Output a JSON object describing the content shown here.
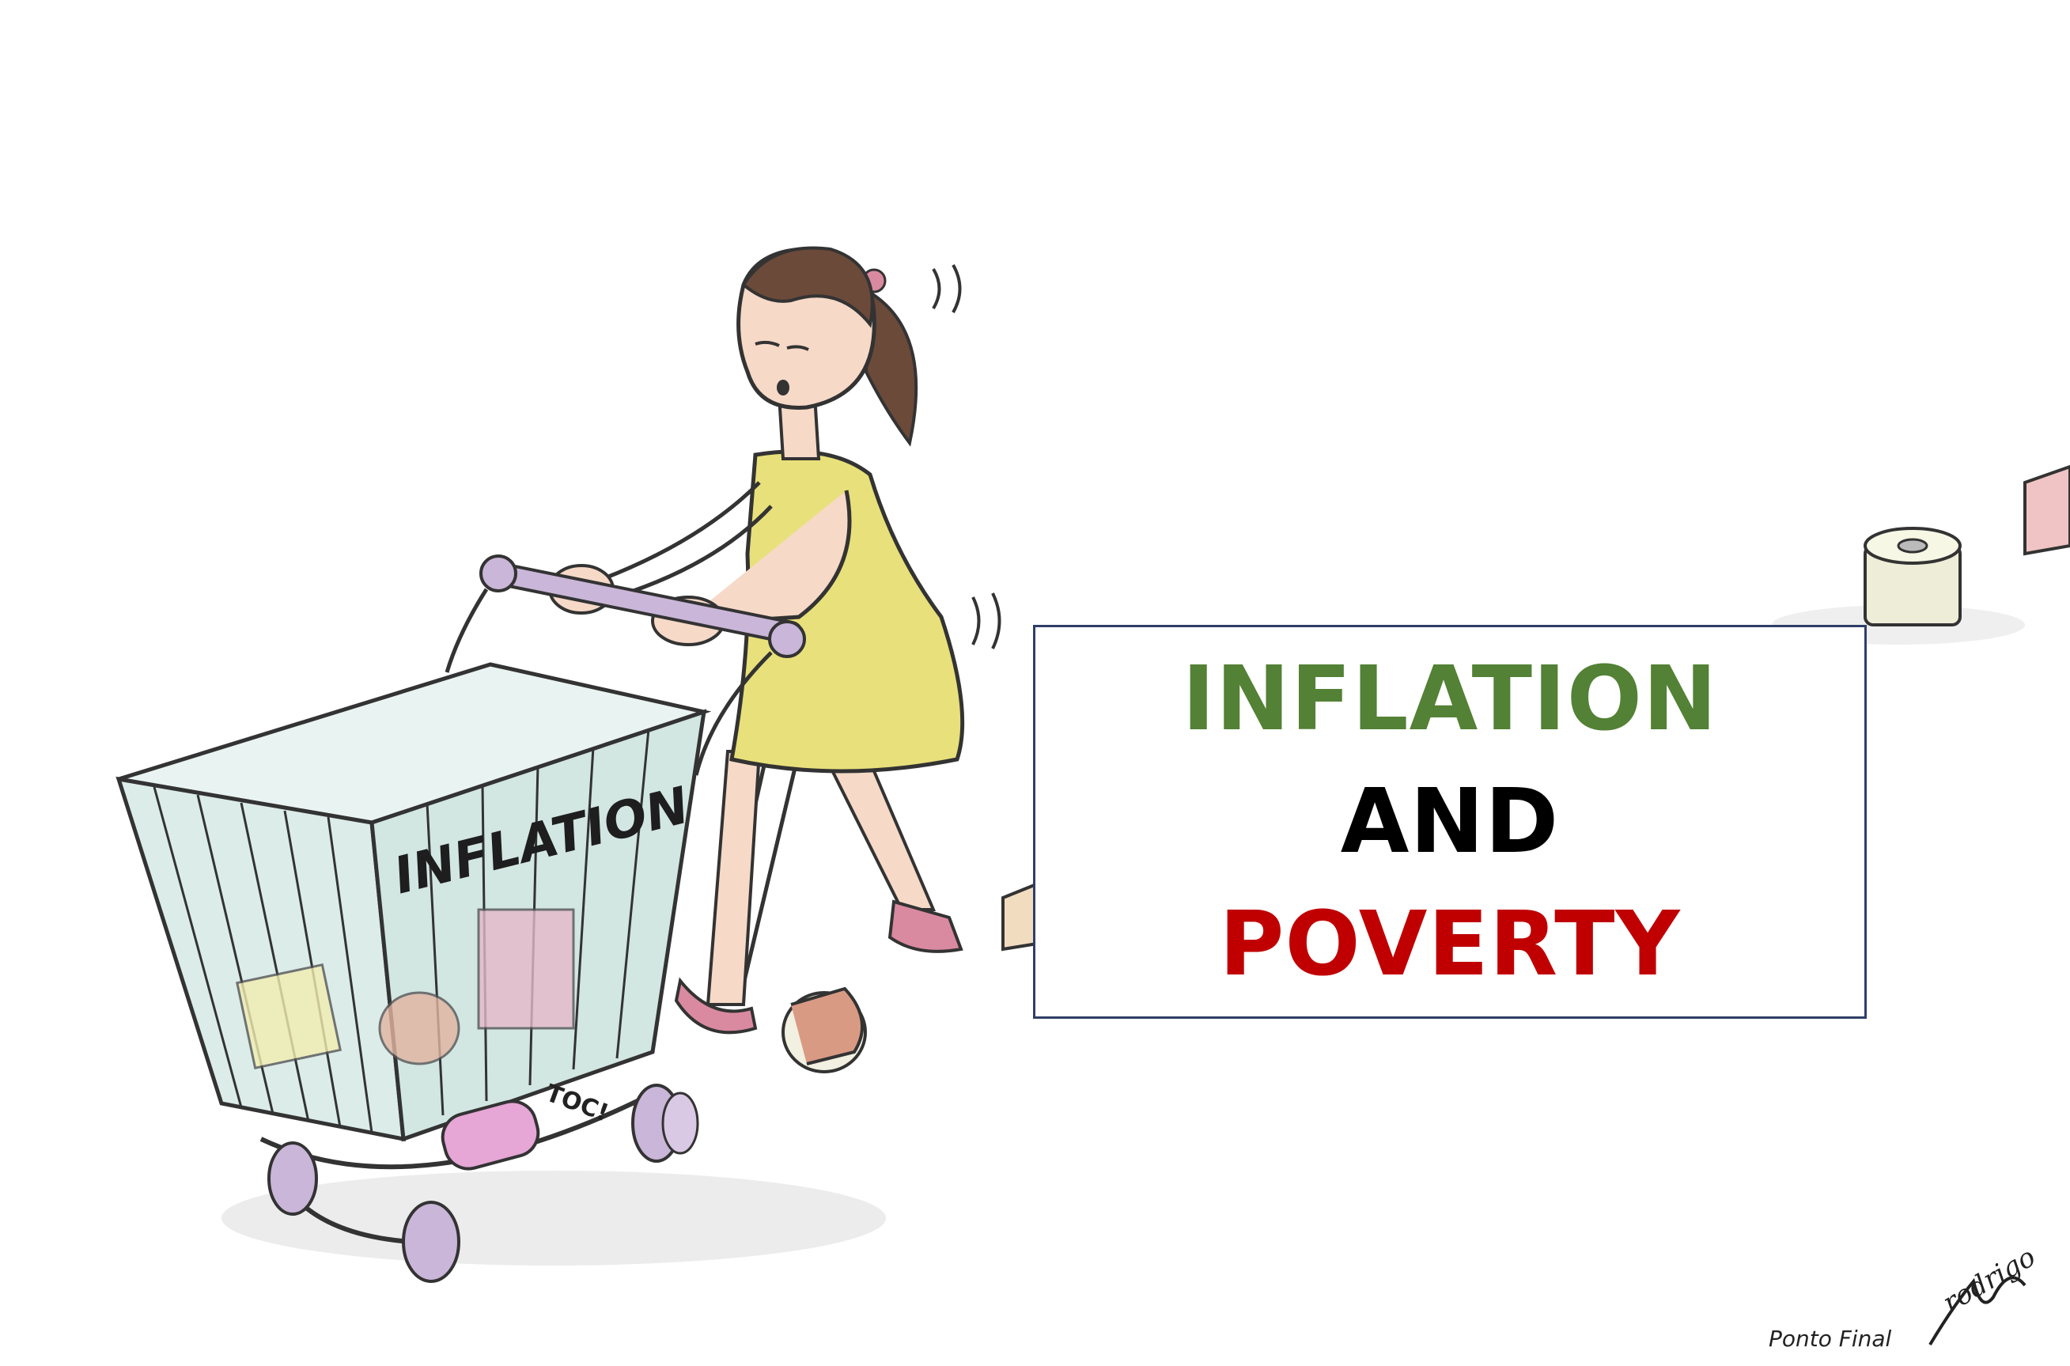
{
  "cartoon": {
    "cart_label": "INFLATION",
    "sound_effect": "TOC!",
    "credit": "Ponto Final",
    "signature": "rodrigo"
  },
  "title_box": {
    "line1": "INFLATION",
    "line2": "AND",
    "line3": "POVERTY"
  },
  "colors": {
    "line1": "#538135",
    "line2": "#000000",
    "line3": "#c00000",
    "box_border": "#2f3e66",
    "dress": "#e8e07a",
    "cart": "#dbece9",
    "wheels": "#c9b6d8"
  }
}
